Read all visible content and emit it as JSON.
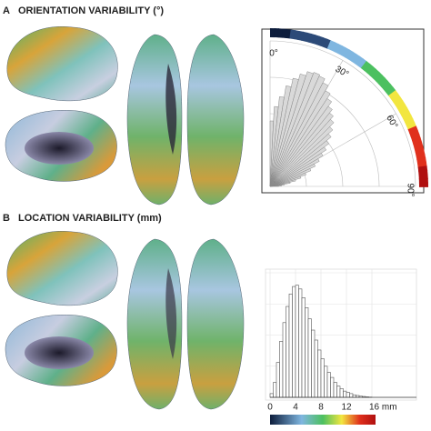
{
  "panel_labels": [
    "A",
    "B"
  ],
  "chart_data": [
    {
      "type": "polar-histogram",
      "title": "ORIENTATION VARIABILITY (°)",
      "bins": [
        0,
        3,
        6,
        9,
        12,
        15,
        18,
        21,
        24,
        27,
        30,
        33,
        36,
        39,
        42,
        45,
        48,
        51,
        54,
        57,
        60,
        63,
        66,
        69,
        72,
        75,
        78,
        81,
        84,
        87,
        90
      ],
      "values": [
        45,
        55,
        62,
        70,
        76,
        80,
        83,
        84,
        83,
        80,
        76,
        72,
        68,
        65,
        62,
        58,
        54,
        50,
        46,
        42,
        38,
        34,
        30,
        26,
        22,
        18,
        14,
        10,
        8,
        6
      ],
      "color": "#d9d9d9",
      "xlim": [
        0,
        90
      ],
      "xticks": [
        {
          "value": 0,
          "label": "0°"
        },
        {
          "value": 30,
          "label": "30°"
        },
        {
          "value": 60,
          "label": "60°"
        },
        {
          "value": 90,
          "label": "90°"
        }
      ],
      "ylim": [
        0,
        100
      ],
      "grid": true
    },
    {
      "type": "histogram",
      "title": "LOCATION VARIABILITY (mm)",
      "bins": [
        0,
        0.5,
        1,
        1.5,
        2,
        2.5,
        3,
        3.5,
        4,
        4.5,
        5,
        5.5,
        6,
        6.5,
        7,
        7.5,
        8,
        8.5,
        9,
        9.5,
        10,
        10.5,
        11,
        11.5,
        12,
        12.5,
        13,
        13.5,
        14,
        14.5,
        15,
        15.5,
        16
      ],
      "values": [
        3,
        12,
        28,
        45,
        60,
        73,
        83,
        89,
        90,
        87,
        80,
        72,
        63,
        54,
        46,
        38,
        31,
        25,
        20,
        16,
        12,
        9,
        7,
        5,
        4,
        3,
        2,
        1.5,
        1,
        0.7,
        0.4,
        0.2
      ],
      "color": "#ffffff",
      "xlim": [
        0,
        23
      ],
      "xticks": [
        0,
        4,
        8,
        12,
        {
          "value": 16,
          "label": "16 mm"
        }
      ],
      "ylim": [
        0,
        100
      ],
      "grid": true
    }
  ]
}
